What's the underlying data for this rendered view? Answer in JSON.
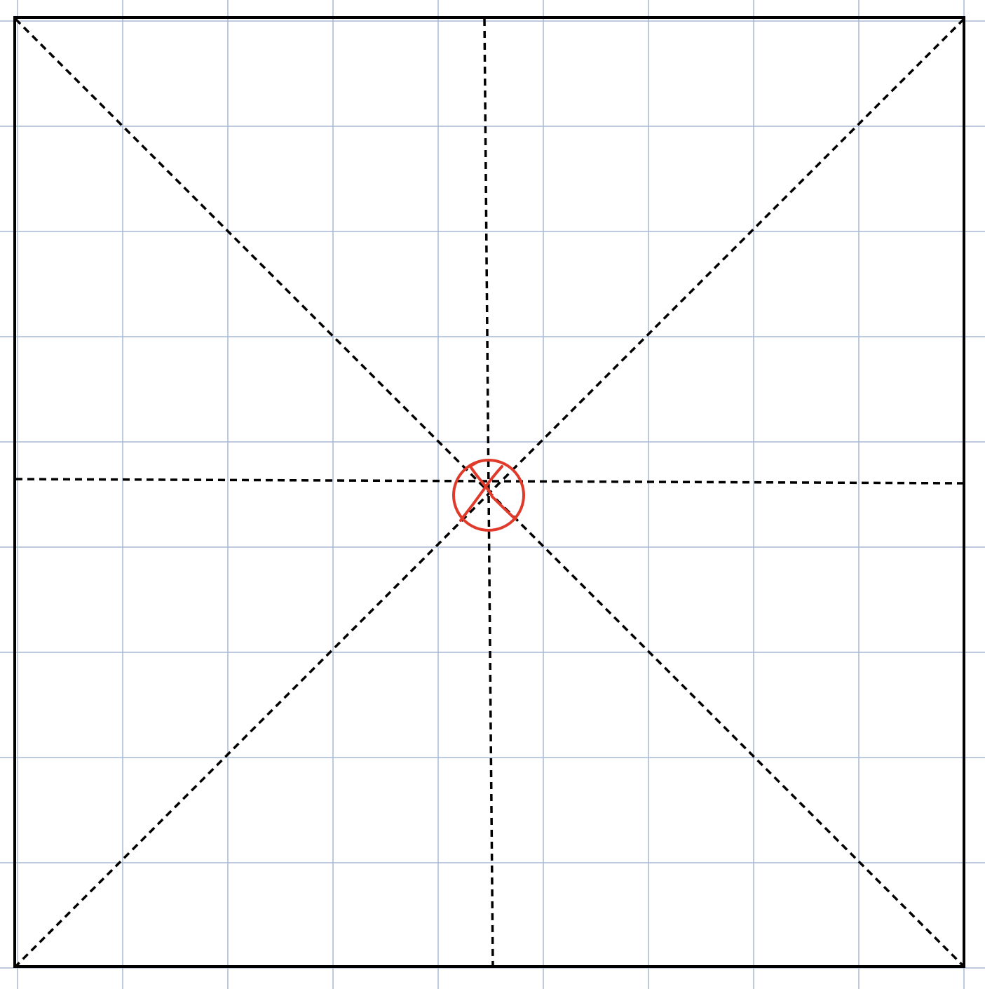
{
  "colors": {
    "background": "#ffffff",
    "grid": "#a9b9d3",
    "frame": "#000000",
    "guide": "#000000",
    "mark": "#e03a2a"
  },
  "diagram": {
    "grid_cells": 9,
    "guides": [
      "horizontal",
      "vertical",
      "diagonal-descending",
      "diagonal-ascending"
    ],
    "guide_style": "dashed",
    "mark": "circled-x"
  }
}
